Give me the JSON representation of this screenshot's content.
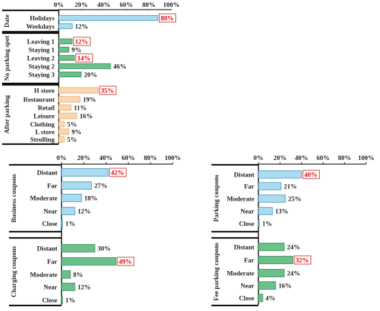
{
  "colors": {
    "blue": "#a9dcef",
    "blue_stroke": "#3a92bd",
    "green": "#6cc08a",
    "green_stroke": "#2f8a55",
    "peach": "#fbd7b0",
    "peach_stroke": "#e3a46a",
    "highlight_text": "#e00000",
    "highlight_box": "#d04040"
  },
  "ticks": [
    "0%",
    "20%",
    "40%",
    "60%",
    "80%",
    "100%"
  ],
  "chart_data": [
    {
      "type": "bar",
      "orientation": "horizontal",
      "xlim": [
        0,
        100
      ],
      "groups": [
        {
          "label": "Date",
          "color": "blue",
          "categories": [
            "Holidays",
            "Weekdays"
          ],
          "values": [
            88,
            12
          ],
          "value_labels": [
            "88%",
            "12%"
          ],
          "highlight": [
            true,
            false
          ]
        },
        {
          "label": "No parking spot",
          "color": "green",
          "categories": [
            "Leaving 1",
            "Staying 1",
            "Leaving 2",
            "Staying 2",
            "Staying 3"
          ],
          "values": [
            12,
            9,
            14,
            46,
            20
          ],
          "value_labels": [
            "12%",
            "9%",
            "14%",
            "46%",
            "20%"
          ],
          "highlight": [
            true,
            false,
            true,
            false,
            false
          ]
        },
        {
          "label": "After parking",
          "color": "peach",
          "categories": [
            "H store",
            "Restaurant",
            "Retail",
            "Leisure",
            "Clothing",
            "L store",
            "Strolling"
          ],
          "values": [
            35,
            19,
            11,
            16,
            5,
            9,
            5
          ],
          "value_labels": [
            "35%",
            "19%",
            "11%",
            "16%",
            "5%",
            "9%",
            "5%"
          ],
          "highlight": [
            true,
            false,
            false,
            false,
            false,
            false,
            false
          ]
        }
      ]
    },
    {
      "type": "bar",
      "orientation": "horizontal",
      "xlim": [
        0,
        100
      ],
      "groups": [
        {
          "label": "Business coupons",
          "color": "blue",
          "categories": [
            "Distant",
            "Far",
            "Moderate",
            "Near",
            "Close"
          ],
          "values": [
            42,
            27,
            18,
            12,
            1
          ],
          "value_labels": [
            "42%",
            "27%",
            "18%",
            "12%",
            "1%"
          ],
          "highlight": [
            true,
            false,
            false,
            false,
            false
          ]
        },
        {
          "label": "Charging coupons",
          "color": "green",
          "categories": [
            "Distant",
            "Far",
            "Moderate",
            "Near",
            "Close"
          ],
          "values": [
            30,
            49,
            8,
            12,
            1
          ],
          "value_labels": [
            "30%",
            "49%",
            "8%",
            "12%",
            "1%"
          ],
          "highlight": [
            false,
            true,
            false,
            false,
            false
          ]
        }
      ]
    },
    {
      "type": "bar",
      "orientation": "horizontal",
      "xlim": [
        0,
        100
      ],
      "groups": [
        {
          "label": "Parking coupons",
          "color": "blue",
          "categories": [
            "Distant",
            "Far",
            "Moderate",
            "Near",
            "Close"
          ],
          "values": [
            40,
            21,
            25,
            13,
            1
          ],
          "value_labels": [
            "40%",
            "21%",
            "25%",
            "13%",
            "1%"
          ],
          "highlight": [
            true,
            false,
            false,
            false,
            false
          ]
        },
        {
          "label": "Fee parking coupons",
          "color": "green",
          "categories": [
            "Distant",
            "Far",
            "Moderate",
            "Near",
            "Close"
          ],
          "values": [
            24,
            32,
            24,
            16,
            4
          ],
          "value_labels": [
            "24%",
            "32%",
            "24%",
            "16%",
            "4%"
          ],
          "highlight": [
            false,
            true,
            false,
            false,
            false
          ]
        }
      ]
    }
  ]
}
